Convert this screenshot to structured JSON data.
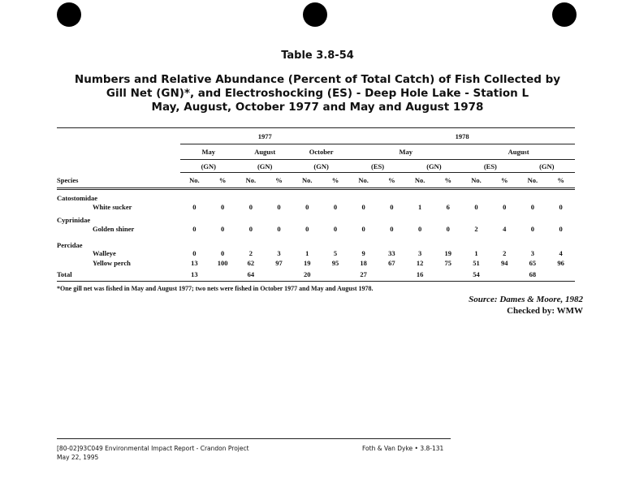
{
  "table_number": "Table 3.8-54",
  "title_lines": [
    "Numbers and Relative Abundance (Percent of Total Catch) of Fish Collected by",
    "Gill Net (GN)*, and Electroshocking (ES) - Deep Hole Lake - Station L",
    "May, August, October 1977 and May and August 1978"
  ],
  "years": [
    "1977",
    "1978"
  ],
  "months": [
    "May",
    "August",
    "October",
    "May",
    "August"
  ],
  "methods": [
    "(GN)",
    "(GN)",
    "(GN)",
    "(ES)",
    "(GN)",
    "(ES)",
    "(GN)"
  ],
  "species_header": "Species",
  "col_headers": [
    "No.",
    "%"
  ],
  "rows": [
    {
      "type": "family",
      "label": "Catostomidae"
    },
    {
      "type": "species",
      "label": "White sucker",
      "values": [
        "0",
        "0",
        "0",
        "0",
        "0",
        "0",
        "0",
        "0",
        "1",
        "6",
        "0",
        "0",
        "0",
        "0"
      ]
    },
    {
      "type": "family",
      "label": "Cyprinidae"
    },
    {
      "type": "species",
      "label": "Golden shiner",
      "values": [
        "0",
        "0",
        "0",
        "0",
        "0",
        "0",
        "0",
        "0",
        "0",
        "0",
        "2",
        "4",
        "0",
        "0"
      ]
    },
    {
      "type": "family",
      "label": "Percidae"
    },
    {
      "type": "species",
      "label": "Walleye",
      "values": [
        "0",
        "0",
        "2",
        "3",
        "1",
        "5",
        "9",
        "33",
        "3",
        "19",
        "1",
        "2",
        "3",
        "4"
      ]
    },
    {
      "type": "species",
      "label": "Yellow perch",
      "values": [
        "13",
        "100",
        "62",
        "97",
        "19",
        "95",
        "18",
        "67",
        "12",
        "75",
        "51",
        "94",
        "65",
        "96"
      ]
    },
    {
      "type": "total",
      "label": "Total",
      "values": [
        "13",
        "",
        "64",
        "",
        "20",
        "",
        "27",
        "",
        "16",
        "",
        "54",
        "",
        "68",
        ""
      ]
    }
  ],
  "footnote": "*One gill net was fished in May and August 1977; two nets were fished in October 1977 and May and August 1978.",
  "source": "Source:  Dames & Moore, 1982",
  "checked_by": "Checked by:  WMW",
  "footer": {
    "doc_id": "[80-02]93C049  Environmental Impact Report - Crandon Project",
    "date": "May 22, 1995",
    "page": "Foth & Van Dyke • 3.8-131"
  }
}
